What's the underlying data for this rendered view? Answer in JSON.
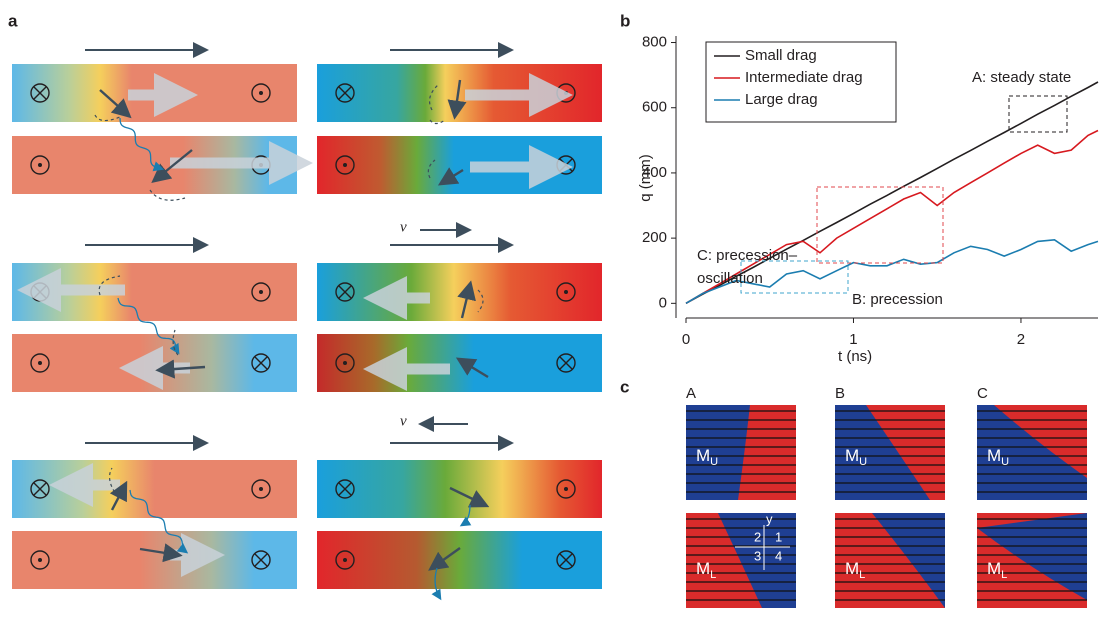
{
  "panel_labels": [
    "a",
    "b",
    "c"
  ],
  "panel_a": {
    "velocity_labels": [
      "v",
      "v"
    ]
  },
  "chart_data": {
    "type": "line",
    "x_label": "t (ns)",
    "y_label": "q (mm)",
    "x": [
      0,
      0.1,
      0.2,
      0.3,
      0.4,
      0.5,
      0.6,
      0.7,
      0.8,
      0.9,
      1.0,
      1.1,
      1.2,
      1.3,
      1.4,
      1.5,
      1.6,
      1.7,
      1.8,
      1.9,
      2.0,
      2.1,
      2.2,
      2.3,
      2.4,
      2.46
    ],
    "series": [
      {
        "name": "Small drag",
        "color": "#231f20",
        "values": [
          0,
          28,
          55,
          83,
          110,
          138,
          166,
          193,
          221,
          248,
          276,
          304,
          331,
          359,
          386,
          414,
          442,
          469,
          497,
          524,
          552,
          580,
          607,
          635,
          662,
          679
        ]
      },
      {
        "name": "Intermediate drag",
        "color": "#d7191f",
        "values": [
          0,
          30,
          60,
          90,
          120,
          150,
          180,
          190,
          155,
          200,
          230,
          260,
          290,
          320,
          340,
          300,
          340,
          370,
          400,
          430,
          460,
          485,
          460,
          470,
          515,
          530
        ]
      },
      {
        "name": "Large drag",
        "color": "#1b7db0",
        "values": [
          0,
          30,
          50,
          70,
          60,
          50,
          90,
          100,
          75,
          100,
          125,
          115,
          115,
          135,
          120,
          125,
          155,
          175,
          165,
          145,
          165,
          190,
          195,
          160,
          180,
          190
        ]
      }
    ],
    "xlim": [
      0,
      2.46
    ],
    "ylim": [
      -45,
      820
    ],
    "xticks": [
      0,
      1,
      2
    ],
    "yticks": [
      0,
      200,
      400,
      600,
      800
    ],
    "grid": false,
    "legend": "top-left",
    "annotations": [
      "A: steady state",
      "B: precession",
      "C: precession–",
      "oscillation"
    ]
  },
  "panel_c": {
    "columns": [
      {
        "label": "A",
        "upper": [
          "M",
          "U"
        ],
        "lower": [
          "M",
          "L"
        ]
      },
      {
        "label": "B",
        "upper": [
          "M",
          "U"
        ],
        "lower": [
          "M",
          "L"
        ]
      },
      {
        "label": "C",
        "upper": [
          "M",
          "U"
        ],
        "lower": [
          "M",
          "L"
        ]
      }
    ],
    "inset_labels": [
      "y",
      "2",
      "1",
      "3",
      "4"
    ]
  }
}
